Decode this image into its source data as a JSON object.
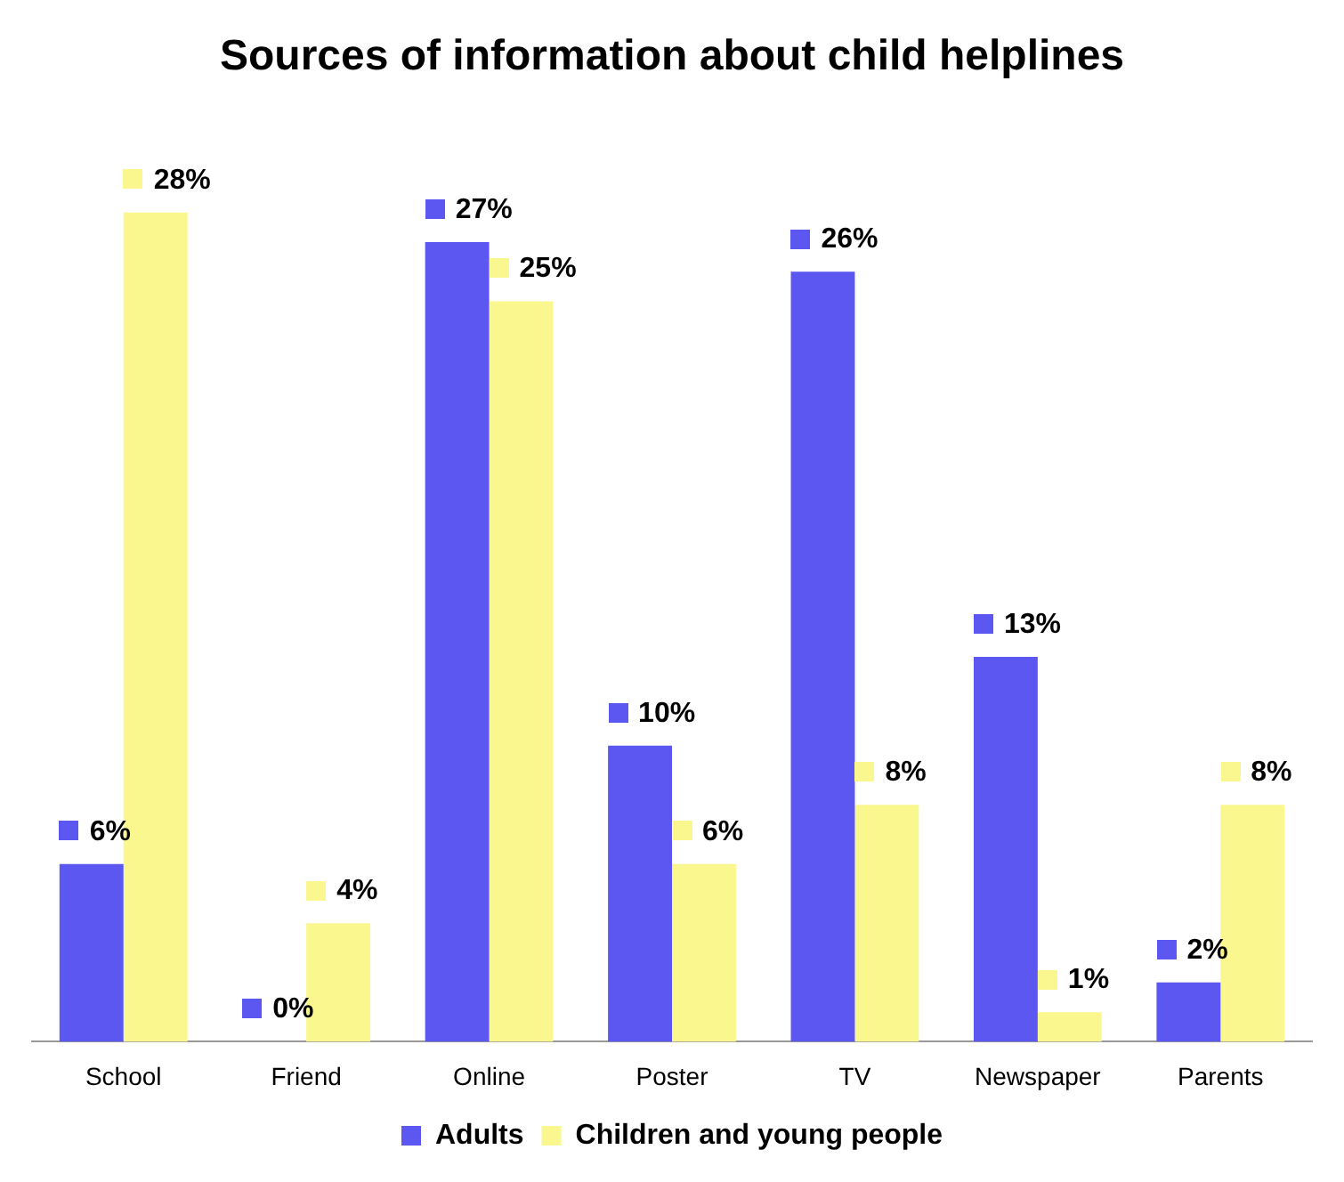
{
  "chart_data": {
    "type": "bar",
    "title": "Sources of information about child helplines",
    "categories": [
      "School",
      "Friend",
      "Online",
      "Poster",
      "TV",
      "Newspaper",
      "Parents"
    ],
    "series": [
      {
        "name": "Adults",
        "color": "#5b57f0",
        "values": [
          6,
          0,
          27,
          10,
          26,
          13,
          2
        ],
        "value_labels": [
          "6%",
          "0%",
          "27%",
          "10%",
          "26%",
          "13%",
          "2%"
        ]
      },
      {
        "name": "Children and young people",
        "color": "#faf78f",
        "values": [
          28,
          4,
          25,
          6,
          8,
          1,
          8
        ],
        "value_labels": [
          "28%",
          "4%",
          "25%",
          "6%",
          "8%",
          "1%",
          "8%"
        ]
      }
    ],
    "legend": "bottom",
    "grid": false
  }
}
